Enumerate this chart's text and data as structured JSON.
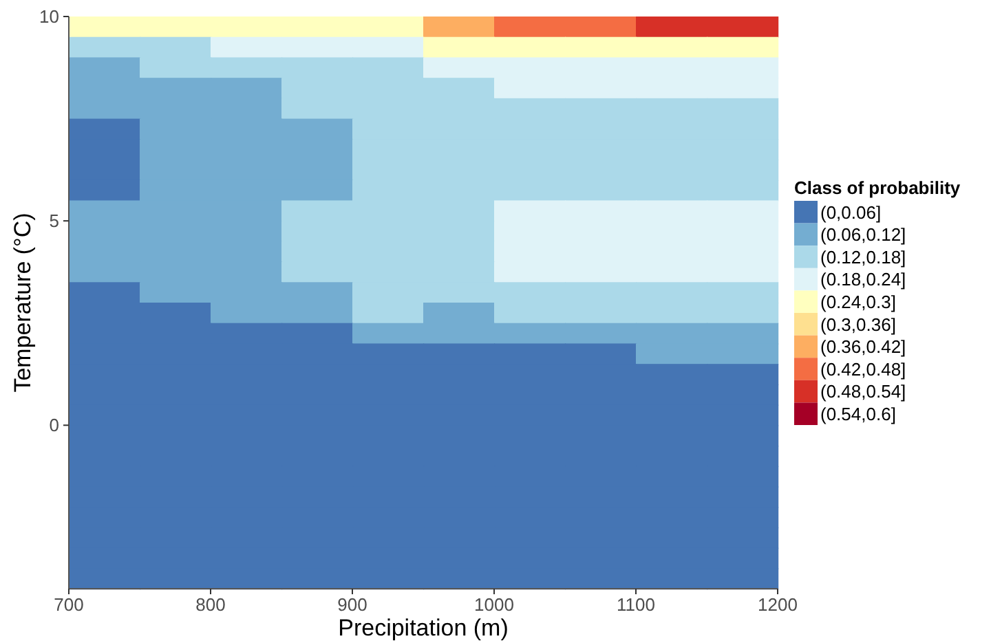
{
  "chart_data": {
    "type": "heatmap",
    "xlabel": "Precipitation (m)",
    "ylabel": "Temperature (°C)",
    "legend_title": "Class of probability",
    "x": [
      725,
      775,
      825,
      875,
      925,
      975,
      1025,
      1075,
      1125,
      1175
    ],
    "y": [
      9.75,
      9.25,
      8.75,
      8.25,
      7.75,
      7.25,
      6.75,
      6.25,
      5.75,
      5.25,
      4.75,
      4.25,
      3.75,
      3.25,
      2.75,
      2.25,
      1.75,
      1.25,
      0.75,
      0.25,
      -0.25,
      -0.75,
      -1.25,
      -1.75,
      -2.25,
      -2.75,
      -3.25,
      -3.75
    ],
    "xlim": [
      700,
      1200
    ],
    "xticks": [
      700,
      800,
      900,
      1000,
      1100,
      1200
    ],
    "ylim": [
      -4,
      10
    ],
    "yticks": [
      0,
      5,
      10
    ],
    "clim": [
      0,
      0.6
    ],
    "colors": [
      "#4575b4",
      "#74add1",
      "#abd9e9",
      "#e0f3f8",
      "#ffffbf",
      "#fee090",
      "#fdae61",
      "#f46d43",
      "#d73027",
      "#a50026"
    ],
    "cticks": [
      {
        "value": 0.03,
        "label": "(0,0.06]"
      },
      {
        "value": 0.09,
        "label": "(0.06,0.12]"
      },
      {
        "value": 0.15,
        "label": "(0.12,0.18]"
      },
      {
        "value": 0.21,
        "label": "(0.18,0.24]"
      },
      {
        "value": 0.27,
        "label": "(0.24,0.3]"
      },
      {
        "value": 0.33,
        "label": "(0.3,0.36]"
      },
      {
        "value": 0.39,
        "label": "(0.36,0.42]"
      },
      {
        "value": 0.45,
        "label": "(0.42,0.48]"
      },
      {
        "value": 0.51,
        "label": "(0.48,0.54]"
      },
      {
        "value": 0.57,
        "label": "(0.54,0.6]"
      }
    ],
    "cells": [
      [
        0.27,
        0.27,
        0.27,
        0.27,
        0.27,
        0.39,
        0.45,
        0.45,
        0.51,
        0.51
      ],
      [
        0.15,
        0.15,
        0.21,
        0.21,
        0.21,
        0.27,
        0.27,
        0.27,
        0.27,
        0.27
      ],
      [
        0.09,
        0.15,
        0.15,
        0.15,
        0.15,
        0.21,
        0.21,
        0.21,
        0.21,
        0.21
      ],
      [
        0.09,
        0.09,
        0.09,
        0.15,
        0.15,
        0.15,
        0.21,
        0.21,
        0.21,
        0.21
      ],
      [
        0.09,
        0.09,
        0.09,
        0.15,
        0.15,
        0.15,
        0.15,
        0.15,
        0.15,
        0.15
      ],
      [
        0.03,
        0.09,
        0.09,
        0.09,
        0.15,
        0.15,
        0.15,
        0.15,
        0.15,
        0.15
      ],
      [
        0.03,
        0.09,
        0.09,
        0.09,
        0.15,
        0.15,
        0.15,
        0.15,
        0.15,
        0.15
      ],
      [
        0.03,
        0.09,
        0.09,
        0.09,
        0.15,
        0.15,
        0.15,
        0.15,
        0.15,
        0.15
      ],
      [
        0.03,
        0.09,
        0.09,
        0.09,
        0.15,
        0.15,
        0.15,
        0.15,
        0.15,
        0.15
      ],
      [
        0.09,
        0.09,
        0.09,
        0.15,
        0.15,
        0.15,
        0.21,
        0.21,
        0.21,
        0.21
      ],
      [
        0.09,
        0.09,
        0.09,
        0.15,
        0.15,
        0.15,
        0.21,
        0.21,
        0.21,
        0.21
      ],
      [
        0.09,
        0.09,
        0.09,
        0.15,
        0.15,
        0.15,
        0.21,
        0.21,
        0.21,
        0.21
      ],
      [
        0.09,
        0.09,
        0.09,
        0.15,
        0.15,
        0.15,
        0.21,
        0.21,
        0.21,
        0.21
      ],
      [
        0.03,
        0.09,
        0.09,
        0.09,
        0.15,
        0.15,
        0.15,
        0.15,
        0.15,
        0.15
      ],
      [
        0.03,
        0.03,
        0.09,
        0.09,
        0.15,
        0.09,
        0.15,
        0.15,
        0.15,
        0.15
      ],
      [
        0.03,
        0.03,
        0.03,
        0.03,
        0.09,
        0.09,
        0.09,
        0.09,
        0.09,
        0.09
      ],
      [
        0.03,
        0.03,
        0.03,
        0.03,
        0.03,
        0.03,
        0.03,
        0.03,
        0.09,
        0.09
      ],
      [
        0.03,
        0.03,
        0.03,
        0.03,
        0.03,
        0.03,
        0.03,
        0.03,
        0.03,
        0.03
      ],
      [
        0.03,
        0.03,
        0.03,
        0.03,
        0.03,
        0.03,
        0.03,
        0.03,
        0.03,
        0.03
      ],
      [
        0.03,
        0.03,
        0.03,
        0.03,
        0.03,
        0.03,
        0.03,
        0.03,
        0.03,
        0.03
      ],
      [
        0.03,
        0.03,
        0.03,
        0.03,
        0.03,
        0.03,
        0.03,
        0.03,
        0.03,
        0.03
      ],
      [
        0.03,
        0.03,
        0.03,
        0.03,
        0.03,
        0.03,
        0.03,
        0.03,
        0.03,
        0.03
      ],
      [
        0.03,
        0.03,
        0.03,
        0.03,
        0.03,
        0.03,
        0.03,
        0.03,
        0.03,
        0.03
      ],
      [
        0.03,
        0.03,
        0.03,
        0.03,
        0.03,
        0.03,
        0.03,
        0.03,
        0.03,
        0.03
      ],
      [
        0.03,
        0.03,
        0.03,
        0.03,
        0.03,
        0.03,
        0.03,
        0.03,
        0.03,
        0.03
      ],
      [
        0.03,
        0.03,
        0.03,
        0.03,
        0.03,
        0.03,
        0.03,
        0.03,
        0.03,
        0.03
      ],
      [
        0.03,
        0.03,
        0.03,
        0.03,
        0.03,
        0.03,
        0.03,
        0.03,
        0.03,
        0.03
      ],
      [
        0.03,
        0.03,
        0.03,
        0.03,
        0.03,
        0.03,
        0.03,
        0.03,
        0.03,
        0.03
      ]
    ]
  }
}
